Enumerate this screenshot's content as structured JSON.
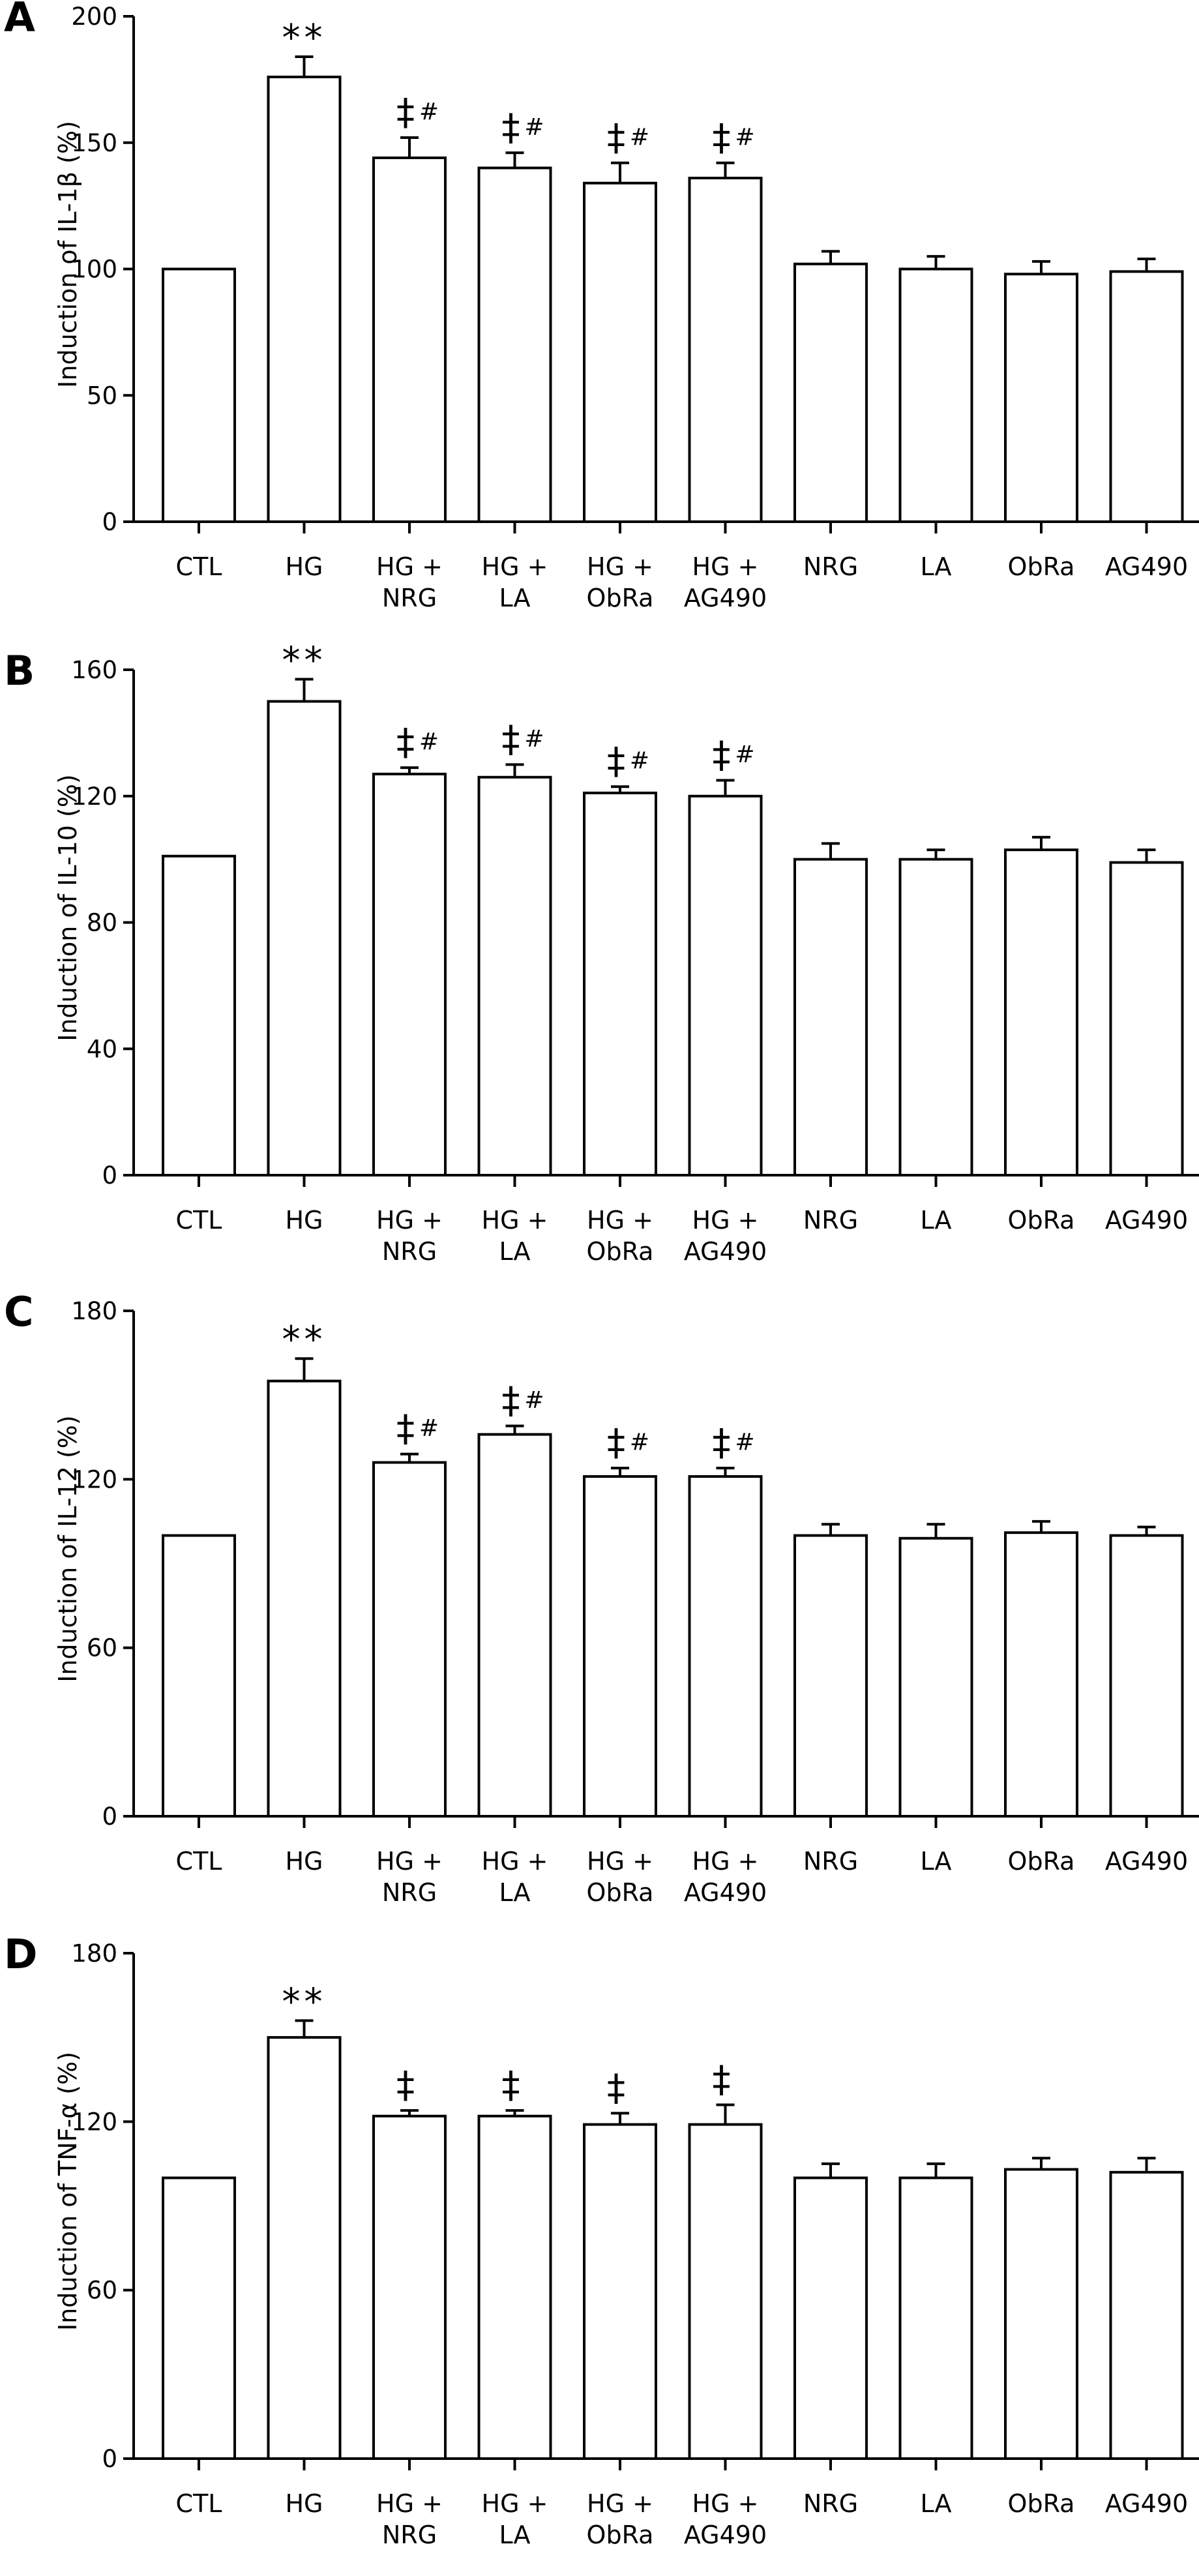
{
  "chart_data": [
    {
      "type": "bar",
      "panel": "A",
      "ylabel": "Induction of IL-1β (%)",
      "ylim": [
        0,
        200
      ],
      "yticks": [
        0,
        50,
        100,
        150,
        200
      ],
      "categories": [
        [
          "CTL"
        ],
        [
          "HG"
        ],
        [
          "HG +",
          "NRG"
        ],
        [
          "HG +",
          "LA"
        ],
        [
          "HG +",
          "ObRa"
        ],
        [
          "HG +",
          "AG490"
        ],
        [
          "NRG"
        ],
        [
          "LA"
        ],
        [
          "ObRa"
        ],
        [
          "AG490"
        ]
      ],
      "values": [
        100,
        176,
        144,
        140,
        134,
        136,
        102,
        100,
        98,
        99
      ],
      "errors": [
        0,
        8,
        8,
        6,
        8,
        6,
        5,
        5,
        5,
        5
      ],
      "annotations": [
        [
          "",
          ""
        ],
        [
          "**",
          ""
        ],
        [
          "‡",
          "#"
        ],
        [
          "‡",
          "#"
        ],
        [
          "‡",
          "#"
        ],
        [
          "‡",
          "#"
        ],
        [
          "",
          ""
        ],
        [
          "",
          ""
        ],
        [
          "",
          ""
        ],
        [
          "",
          ""
        ]
      ]
    },
    {
      "type": "bar",
      "panel": "B",
      "ylabel": "Induction of IL-10 (%)",
      "ylim": [
        0,
        160
      ],
      "yticks": [
        0,
        40,
        80,
        120,
        160
      ],
      "categories": [
        [
          "CTL"
        ],
        [
          "HG"
        ],
        [
          "HG +",
          "NRG"
        ],
        [
          "HG +",
          "LA"
        ],
        [
          "HG +",
          "ObRa"
        ],
        [
          "HG +",
          "AG490"
        ],
        [
          "NRG"
        ],
        [
          "LA"
        ],
        [
          "ObRa"
        ],
        [
          "AG490"
        ]
      ],
      "values": [
        101,
        150,
        127,
        126,
        121,
        120,
        100,
        100,
        103,
        99
      ],
      "errors": [
        0,
        7,
        2,
        4,
        2,
        5,
        5,
        3,
        4,
        4
      ],
      "annotations": [
        [
          "",
          ""
        ],
        [
          "**",
          ""
        ],
        [
          "‡",
          "#"
        ],
        [
          "‡",
          "#"
        ],
        [
          "‡",
          "#"
        ],
        [
          "‡",
          "#"
        ],
        [
          "",
          ""
        ],
        [
          "",
          ""
        ],
        [
          "",
          ""
        ],
        [
          "",
          ""
        ]
      ]
    },
    {
      "type": "bar",
      "panel": "C",
      "ylabel": "Induction of IL-12 (%)",
      "ylim": [
        0,
        180
      ],
      "yticks": [
        0,
        60,
        120,
        180
      ],
      "categories": [
        [
          "CTL"
        ],
        [
          "HG"
        ],
        [
          "HG +",
          "NRG"
        ],
        [
          "HG +",
          "LA"
        ],
        [
          "HG +",
          "ObRa"
        ],
        [
          "HG +",
          "AG490"
        ],
        [
          "NRG"
        ],
        [
          "LA"
        ],
        [
          "ObRa"
        ],
        [
          "AG490"
        ]
      ],
      "values": [
        100,
        155,
        126,
        136,
        121,
        121,
        100,
        99,
        101,
        100
      ],
      "errors": [
        0,
        8,
        3,
        3,
        3,
        3,
        4,
        5,
        4,
        3
      ],
      "annotations": [
        [
          "",
          ""
        ],
        [
          "**",
          ""
        ],
        [
          "‡",
          "#"
        ],
        [
          "‡",
          "#"
        ],
        [
          "‡",
          "#"
        ],
        [
          "‡",
          "#"
        ],
        [
          "",
          ""
        ],
        [
          "",
          ""
        ],
        [
          "",
          ""
        ],
        [
          "",
          ""
        ]
      ]
    },
    {
      "type": "bar",
      "panel": "D",
      "ylabel": "Induction of TNF-α (%)",
      "ylim": [
        0,
        180
      ],
      "yticks": [
        0,
        60,
        120,
        180
      ],
      "categories": [
        [
          "CTL"
        ],
        [
          "HG"
        ],
        [
          "HG +",
          "NRG"
        ],
        [
          "HG +",
          "LA"
        ],
        [
          "HG +",
          "ObRa"
        ],
        [
          "HG +",
          "AG490"
        ],
        [
          "NRG"
        ],
        [
          "LA"
        ],
        [
          "ObRa"
        ],
        [
          "AG490"
        ]
      ],
      "values": [
        100,
        150,
        122,
        122,
        119,
        119,
        100,
        100,
        103,
        102
      ],
      "errors": [
        0,
        6,
        2,
        2,
        4,
        7,
        5,
        5,
        4,
        5
      ],
      "annotations": [
        [
          "",
          ""
        ],
        [
          "**",
          ""
        ],
        [
          "‡",
          ""
        ],
        [
          "‡",
          ""
        ],
        [
          "‡",
          ""
        ],
        [
          "‡",
          ""
        ],
        [
          "",
          ""
        ],
        [
          "",
          ""
        ],
        [
          "",
          ""
        ],
        [
          "",
          ""
        ]
      ]
    }
  ]
}
